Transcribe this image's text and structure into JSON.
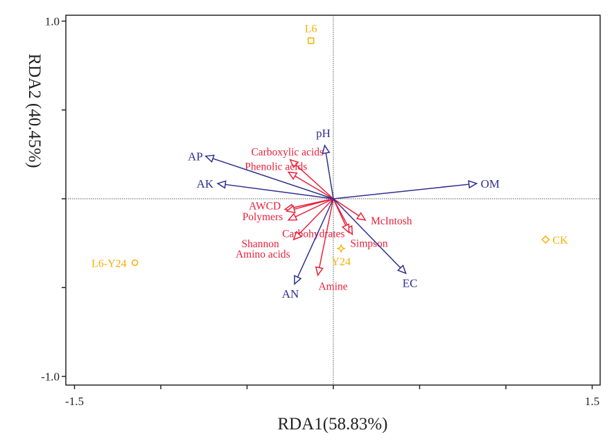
{
  "chart_data": {
    "type": "scatter",
    "subtype": "RDA biplot",
    "xlabel": "RDA1(58.83%)",
    "ylabel": "RDA2 (40.45%)",
    "xlim": [
      -1.55,
      1.55
    ],
    "ylim": [
      -1.05,
      1.03
    ],
    "xticks": [
      -1.5,
      -1.0,
      -0.5,
      0,
      0.5,
      1.0,
      1.5
    ],
    "xtick_labels": {
      "-1.5": "-1.5",
      "1.5": "1.5"
    },
    "yticks": [
      -1.0,
      -0.5,
      0,
      0.5,
      1.0
    ],
    "ytick_labels": {
      "-1.0": "-1.0",
      "1.0": "1.0"
    },
    "grid": false,
    "reference_lines": "dotted lines at x=0 and y=0",
    "colors": {
      "environment": "#2e2e8f",
      "response": "#e8203a",
      "samples": "#f5b000"
    },
    "environment_arrows": [
      {
        "name": "pH",
        "x": -0.05,
        "y": 0.3
      },
      {
        "name": "AP",
        "x": -0.74,
        "y": 0.24
      },
      {
        "name": "AK",
        "x": -0.67,
        "y": 0.086
      },
      {
        "name": "OM",
        "x": 0.83,
        "y": 0.086
      },
      {
        "name": "EC",
        "x": 0.42,
        "y": -0.42
      },
      {
        "name": "AN",
        "x": -0.225,
        "y": -0.48
      }
    ],
    "response_arrows": [
      {
        "name": "Carboxylic acids",
        "x": -0.25,
        "y": 0.22
      },
      {
        "name": "Phenolic acids",
        "x": -0.26,
        "y": 0.15
      },
      {
        "name": "AWCD",
        "x": -0.28,
        "y": -0.06
      },
      {
        "name": "Polymers",
        "x": -0.26,
        "y": -0.12
      },
      {
        "name": "Shannon",
        "x": -0.27,
        "y": -0.07
      },
      {
        "name": "Carbohydrates",
        "x": 0.11,
        "y": -0.2
      },
      {
        "name": "McIntosh",
        "x": 0.185,
        "y": -0.12
      },
      {
        "name": "Simpson",
        "x": 0.09,
        "y": -0.19
      },
      {
        "name": "Amino acids",
        "x": -0.23,
        "y": -0.23
      },
      {
        "name": "Amine",
        "x": -0.09,
        "y": -0.43
      }
    ],
    "samples": [
      {
        "name": "L6",
        "x": -0.13,
        "y": 0.89,
        "marker": "square"
      },
      {
        "name": "L6-Y24",
        "x": -1.15,
        "y": -0.36,
        "marker": "circle"
      },
      {
        "name": "CK",
        "x": 1.23,
        "y": -0.23,
        "marker": "diamond"
      },
      {
        "name": "Y24",
        "x": 0.045,
        "y": -0.28,
        "marker": "star"
      }
    ]
  }
}
